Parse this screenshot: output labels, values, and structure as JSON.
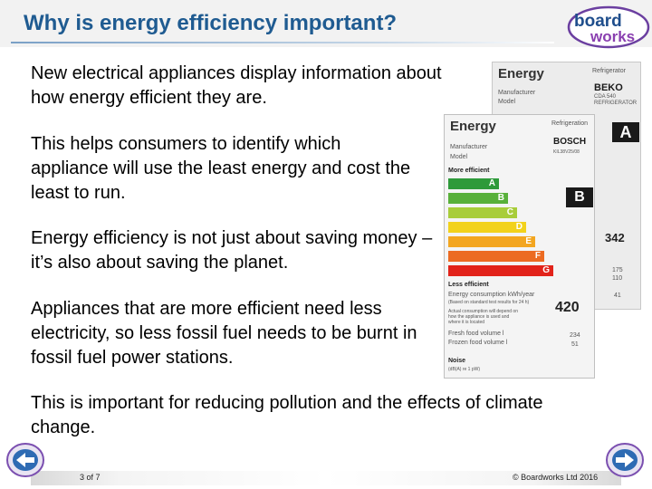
{
  "header": {
    "title": "Why is energy efficiency important?"
  },
  "logo": {
    "line1": "board",
    "line2": "works"
  },
  "paragraphs": [
    "New electrical appliances display information about how energy efficient they are.",
    "This helps consumers to identify which appliance will use the least energy and cost the least to run.",
    "Energy efficiency is not just about saving money – it’s also about saving the planet.",
    "Appliances that are more efficient need less electricity, so less fossil fuel needs to be burnt in fossil fuel power stations.",
    "This is important for reducing pollution and the effects of climate change."
  ],
  "label_back": {
    "title": "Energy",
    "category": "Refrigerator",
    "manufacturer_label": "Manufacturer",
    "model_label": "Model",
    "brand": "BEKO",
    "model_code": "CDA 540",
    "appliance": "REFRIGERATOR",
    "rating": "A",
    "consumption": "342",
    "fresh_volume": "175",
    "frozen_volume": "110",
    "noise": "41"
  },
  "label_front": {
    "title": "Energy",
    "category": "Refrigeration",
    "manufacturer_label": "Manufacturer",
    "model_label": "Model",
    "brand": "BOSCH",
    "model_code": "KIL38V25/08",
    "more_efficient": "More efficient",
    "less_efficient": "Less efficient",
    "rating": "B",
    "consumption_label": "Energy consumption kWh/year",
    "consumption_note": "(Based on standard test results for 24 h)",
    "usage_note": "Actual consumption will depend on how the appliance is used and where it is located",
    "consumption": "420",
    "fresh_label": "Fresh food volume l",
    "frozen_label": "Frozen food volume l",
    "fresh_volume": "234",
    "frozen_volume": "51",
    "noise_label": "Noise",
    "noise_unit": "(dB(A) re 1 pW)",
    "bars": [
      {
        "letter": "A",
        "color": "#2e9a3a"
      },
      {
        "letter": "B",
        "color": "#58b03a"
      },
      {
        "letter": "C",
        "color": "#a8cd3a"
      },
      {
        "letter": "D",
        "color": "#f2d21c"
      },
      {
        "letter": "E",
        "color": "#f3a620"
      },
      {
        "letter": "F",
        "color": "#ec6b22"
      },
      {
        "letter": "G",
        "color": "#e2231a"
      }
    ]
  },
  "footer": {
    "page": "3 of 7",
    "copyright": "© Boardworks Ltd 2016"
  },
  "nav": {
    "prev_icon": "arrow-left-icon",
    "next_icon": "arrow-right-icon"
  }
}
